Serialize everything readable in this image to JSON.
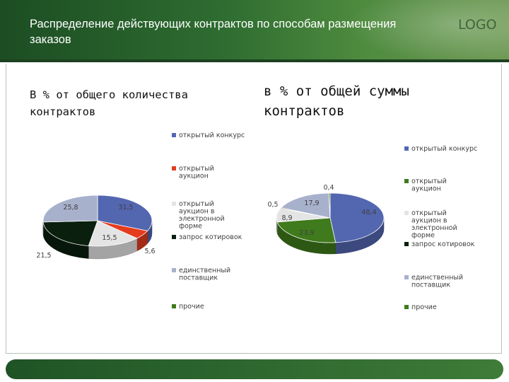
{
  "slide": {
    "title": "Распределение действующих контрактов по способам размещения заказов",
    "logo_text": "LOGO"
  },
  "colors": {
    "header_dark": "#1c4d23",
    "header_light": "#6f9a55",
    "open_tender": "#5366b0",
    "open_auction": "#e43c1e",
    "e_auction": "#e4e4e4",
    "quotation": "#0a1f0e",
    "single_supplier": "#a8b1cc",
    "other": "#3f7a1c"
  },
  "chart_data": [
    {
      "type": "pie",
      "title": "В % от общего количества контрактов",
      "legend_position": "right",
      "slices": [
        {
          "name": "открытый конкурс",
          "value": 31.5,
          "label": "31,5",
          "color": "#5366b0"
        },
        {
          "name": "открытый аукцион",
          "value": 5.6,
          "label": "5,6",
          "color": "#e43c1e"
        },
        {
          "name": "открытый аукцион в электронной форме",
          "value": 15.5,
          "label": "15,5",
          "color": "#e4e4e4"
        },
        {
          "name": "запрос котировок",
          "value": 21.5,
          "label": "21,5",
          "color": "#0a1f0e"
        },
        {
          "name": "единственный поставщик",
          "value": 25.8,
          "label": "25,8",
          "color": "#a8b1cc"
        },
        {
          "name": "прочие",
          "value": 0,
          "label": "",
          "color": "#3f7a1c"
        }
      ]
    },
    {
      "type": "pie",
      "title": "в % от общей суммы контрактов",
      "legend_position": "right",
      "slices": [
        {
          "name": "открытый конкурс",
          "value": 48.4,
          "label": "48,4",
          "color": "#5366b0"
        },
        {
          "name": "открытый аукцион",
          "value": 23.9,
          "label": "23,9",
          "color": "#3f7a1c"
        },
        {
          "name": "открытый аукцион в электронной форме",
          "value": 8.9,
          "label": "8,9",
          "color": "#e4e4e4"
        },
        {
          "name": "запрос котировок",
          "value": 0.5,
          "label": "0,5",
          "color": "#0a1f0e"
        },
        {
          "name": "единственный поставщик",
          "value": 17.9,
          "label": "17,9",
          "color": "#a8b1cc"
        },
        {
          "name": "прочие",
          "value": 0.4,
          "label": "0,4",
          "color": "#3f7a1c"
        }
      ]
    }
  ]
}
